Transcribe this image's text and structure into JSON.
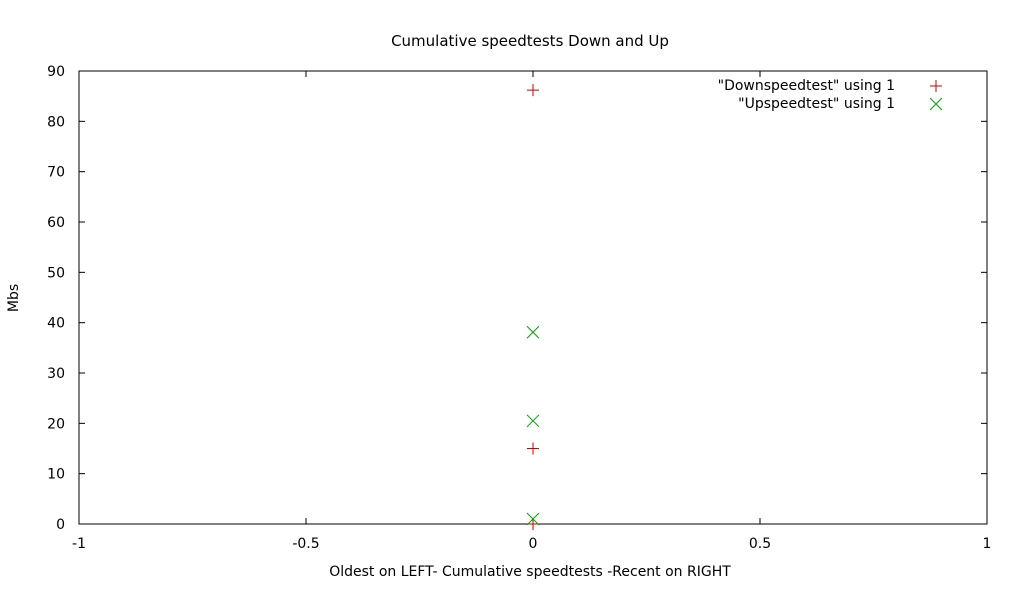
{
  "chart_data": {
    "type": "scatter",
    "title": "Cumulative speedtests Down and Up",
    "xlabel": "Oldest on LEFT- Cumulative speedtests -Recent on RIGHT",
    "ylabel": "Mbs",
    "xlim": [
      -1,
      1
    ],
    "ylim": [
      0,
      90
    ],
    "xticks": [
      -1,
      -0.5,
      0,
      0.5,
      1
    ],
    "xtick_labels": [
      "-1",
      "-0.5",
      "0",
      "0.5",
      "1"
    ],
    "yticks": [
      0,
      10,
      20,
      30,
      40,
      50,
      60,
      70,
      80,
      90
    ],
    "ytick_labels": [
      "0",
      "10",
      "20",
      "30",
      "40",
      "50",
      "60",
      "70",
      "80",
      "90"
    ],
    "grid": false,
    "legend_position": "top-right",
    "series": [
      {
        "name": "\"Downspeedtest\" using 1",
        "marker": "plus",
        "color": "#cc0000",
        "points": [
          {
            "x": 0,
            "y": 86.2
          },
          {
            "x": 0,
            "y": 15.0
          },
          {
            "x": 0,
            "y": 0.0
          }
        ]
      },
      {
        "name": "\"Upspeedtest\" using 1",
        "marker": "cross",
        "color": "#00a000",
        "points": [
          {
            "x": 0,
            "y": 38.1
          },
          {
            "x": 0,
            "y": 20.5
          },
          {
            "x": 0,
            "y": 1.0
          }
        ]
      }
    ]
  }
}
